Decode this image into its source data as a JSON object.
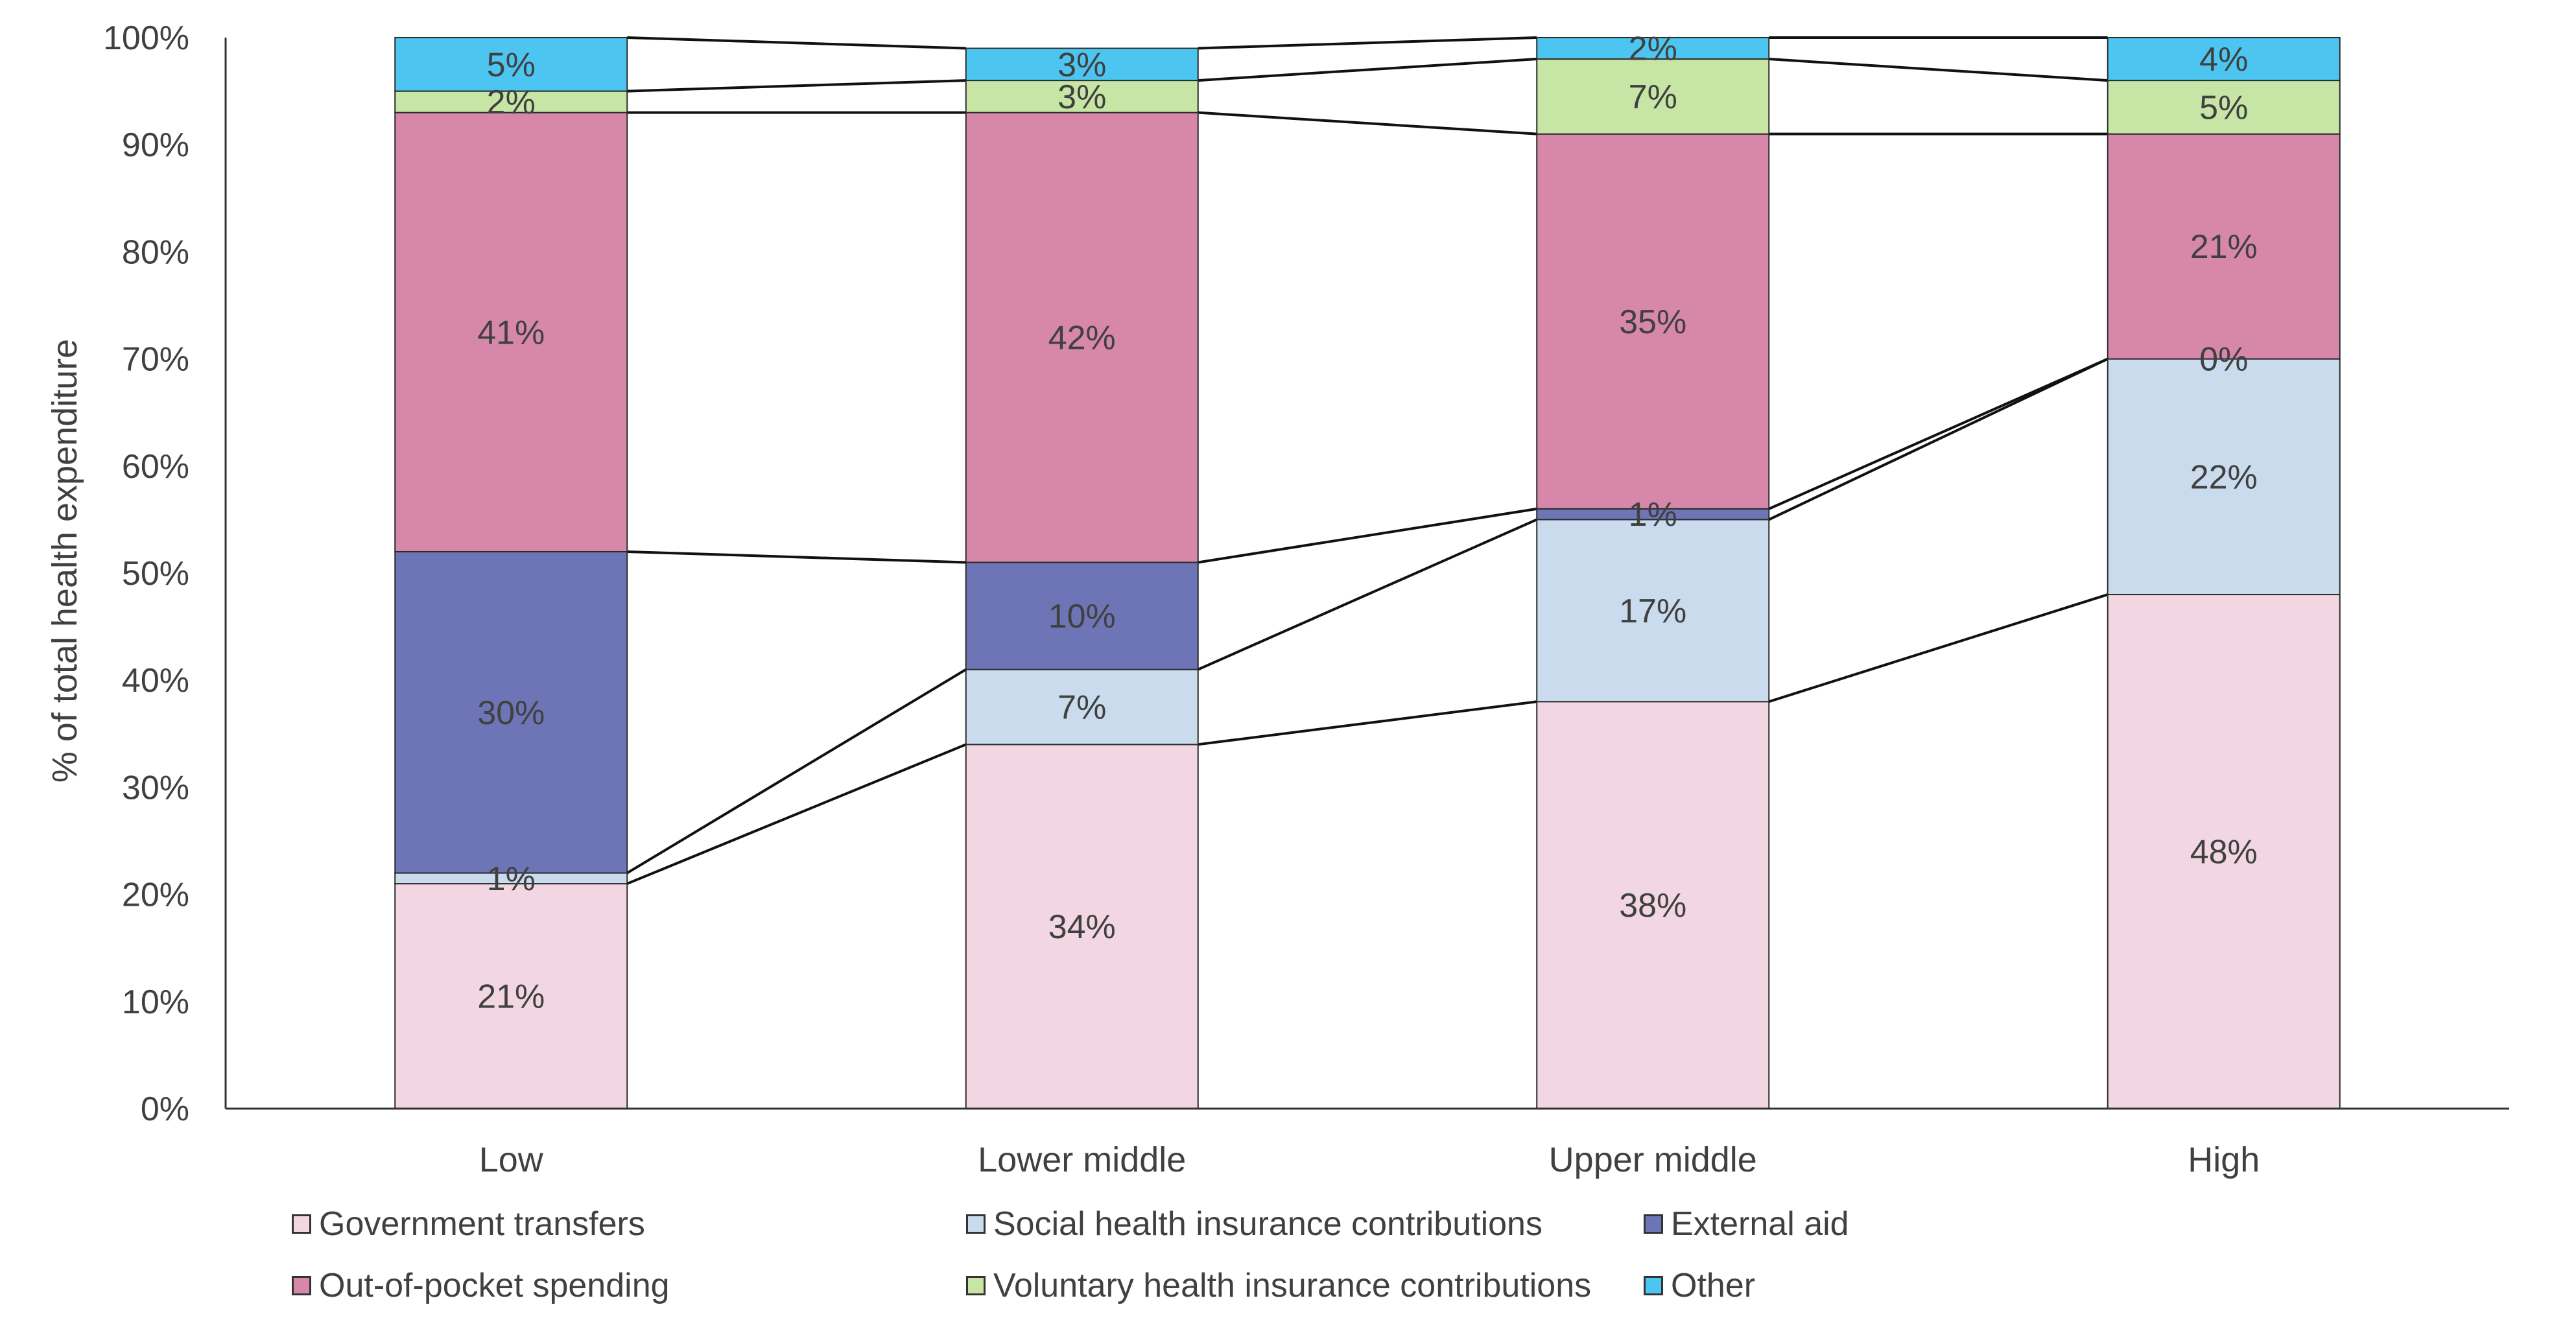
{
  "chart_data": {
    "type": "bar",
    "stacked": true,
    "categories": [
      "Low",
      "Lower middle",
      "Upper middle",
      "High"
    ],
    "ylabel": "% of total health expenditure",
    "xlabel": "",
    "ylim": [
      0,
      100
    ],
    "yticks": [
      "0%",
      "10%",
      "20%",
      "30%",
      "40%",
      "50%",
      "60%",
      "70%",
      "80%",
      "90%",
      "100%"
    ],
    "legend_position": "bottom",
    "series": [
      {
        "name": "Government transfers",
        "color": "#f2d7e3",
        "values": [
          21,
          34,
          38,
          48
        ],
        "labels": [
          "21%",
          "34%",
          "38%",
          "48%"
        ]
      },
      {
        "name": "Social health insurance contributions",
        "color": "#c9dbec",
        "values": [
          1,
          7,
          17,
          22
        ],
        "labels": [
          "1%",
          "7%",
          "17%",
          "22%"
        ]
      },
      {
        "name": "External aid",
        "color": "#6e75b6",
        "values": [
          30,
          10,
          1,
          0
        ],
        "labels": [
          "30%",
          "10%",
          "1%",
          "0%"
        ]
      },
      {
        "name": "Out-of-pocket spending",
        "color": "#d788aa",
        "values": [
          41,
          42,
          35,
          21
        ],
        "labels": [
          "41%",
          "42%",
          "35%",
          "21%"
        ]
      },
      {
        "name": "Voluntary health insurance contributions",
        "color": "#c7e6a5",
        "values": [
          2,
          3,
          7,
          5
        ],
        "labels": [
          "2%",
          "3%",
          "7%",
          "5%"
        ]
      },
      {
        "name": "Other",
        "color": "#4cc6f0",
        "values": [
          5,
          3,
          2,
          4
        ],
        "labels": [
          "5%",
          "3%",
          "2%",
          "4%"
        ]
      }
    ]
  }
}
